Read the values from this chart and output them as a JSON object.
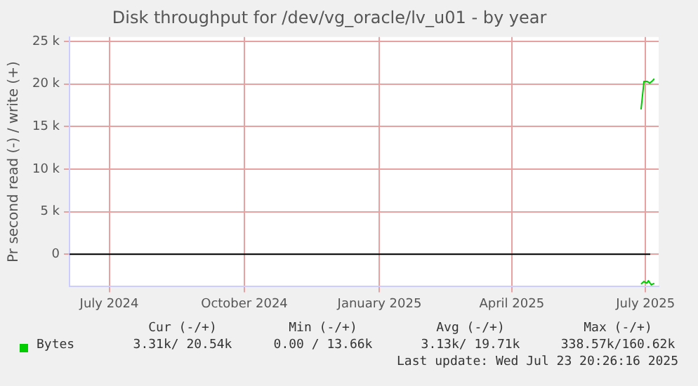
{
  "chart_data": {
    "type": "line",
    "title": "Disk throughput for /dev/vg_oracle/lv_u01 - by year",
    "ylabel": "Pr second read (-) / write (+)",
    "xlim": [
      "2024-06-04",
      "2025-07-10"
    ],
    "xticks": [
      {
        "value": "2024-07-01",
        "label": "July 2024"
      },
      {
        "value": "2024-10-01",
        "label": "October 2024"
      },
      {
        "value": "2025-01-01",
        "label": "January 2025"
      },
      {
        "value": "2025-04-01",
        "label": "April 2025"
      },
      {
        "value": "2025-07-01",
        "label": "July 2025"
      }
    ],
    "ylim": [
      -3800,
      25500
    ],
    "yticks": [
      {
        "value": 0,
        "label": "0"
      },
      {
        "value": 5000,
        "label": "5 k"
      },
      {
        "value": 10000,
        "label": "10 k"
      },
      {
        "value": 15000,
        "label": "15 k"
      },
      {
        "value": 20000,
        "label": "20 k"
      },
      {
        "value": 25000,
        "label": "25 k"
      }
    ],
    "grid": true,
    "legend": "bottom left",
    "line_style": "solid",
    "marker": "none",
    "series": [
      {
        "name": "Bytes",
        "color": "#00cc00",
        "x": [
          "2025-06-28",
          "2025-06-30",
          "2025-07-02",
          "2025-07-04",
          "2025-07-06",
          "2025-07-07"
        ],
        "values": [
          17000,
          20300,
          20300,
          20100,
          20400,
          20600
        ]
      },
      {
        "color": "#00cc00",
        "x": [
          "2025-06-28",
          "2025-06-30",
          "2025-07-02",
          "2025-07-03",
          "2025-07-05",
          "2025-07-07"
        ],
        "values": [
          -3500,
          -3200,
          -3400,
          -3100,
          -3600,
          -3400
        ]
      }
    ],
    "ref_lines": [
      {
        "axis": "y",
        "value": 0,
        "color": "#000000"
      }
    ],
    "annotations": [
      "Cur (-/+)",
      "Min (-/+)",
      "Avg (-/+)",
      "Max (-/+)",
      "3.31k/ 20.54k",
      "0.00 / 13.66k",
      "3.13k/ 19.71k",
      "338.57k/160.62k",
      "Last update: Wed Jul 23 20:26:16 2025"
    ]
  }
}
